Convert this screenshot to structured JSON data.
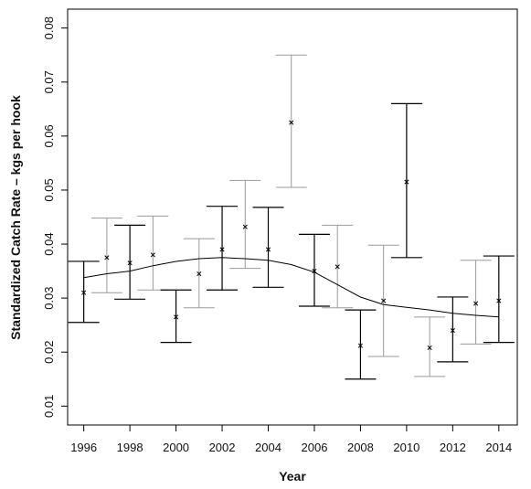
{
  "chart_data": {
    "type": "scatter",
    "title": "",
    "xlabel": "Year",
    "ylabel": "Standardized Catch Rate – kgs per hook",
    "xlim": [
      1995.3,
      2014.8
    ],
    "ylim": [
      0.0065,
      0.0835
    ],
    "xticks": [
      1996,
      1998,
      2000,
      2002,
      2004,
      2006,
      2008,
      2010,
      2012,
      2014
    ],
    "yticks": [
      0.01,
      0.02,
      0.03,
      0.04,
      0.05,
      0.06,
      0.07,
      0.08
    ],
    "grid": false,
    "legend": "none",
    "colors": {
      "primary": "#000000",
      "light": "#9a9a9a"
    },
    "series": [
      {
        "type": "scatter_with_errorbars",
        "x": [
          1996,
          1997,
          1998,
          1999,
          2000,
          2001,
          2002,
          2003,
          2004,
          2005,
          2006,
          2007,
          2008,
          2009,
          2010,
          2011,
          2012,
          2013,
          2014
        ],
        "y": [
          0.031,
          0.0375,
          0.0365,
          0.038,
          0.0265,
          0.0345,
          0.039,
          0.0432,
          0.039,
          0.0625,
          0.035,
          0.0358,
          0.0212,
          0.0295,
          0.0515,
          0.0208,
          0.024,
          0.029,
          0.0295
        ],
        "lower": [
          0.0255,
          0.031,
          0.0298,
          0.0315,
          0.0218,
          0.0282,
          0.0315,
          0.0355,
          0.032,
          0.0505,
          0.0285,
          0.0282,
          0.015,
          0.0192,
          0.0375,
          0.0155,
          0.0182,
          0.0215,
          0.0218
        ],
        "upper": [
          0.0368,
          0.0448,
          0.0435,
          0.0452,
          0.0315,
          0.041,
          0.047,
          0.0518,
          0.0468,
          0.075,
          0.0418,
          0.0435,
          0.0278,
          0.0398,
          0.066,
          0.0265,
          0.0302,
          0.037,
          0.0378
        ]
      },
      {
        "type": "line",
        "x": [
          1996,
          1997,
          1998,
          1999,
          2000,
          2001,
          2002,
          2003,
          2004,
          2005,
          2006,
          2007,
          2008,
          2009,
          2010,
          2011,
          2012,
          2013,
          2014
        ],
        "y": [
          0.0338,
          0.0345,
          0.035,
          0.036,
          0.0368,
          0.0373,
          0.0375,
          0.0373,
          0.037,
          0.0362,
          0.0348,
          0.0325,
          0.0302,
          0.0288,
          0.0283,
          0.0278,
          0.0272,
          0.0268,
          0.0265
        ]
      }
    ]
  }
}
